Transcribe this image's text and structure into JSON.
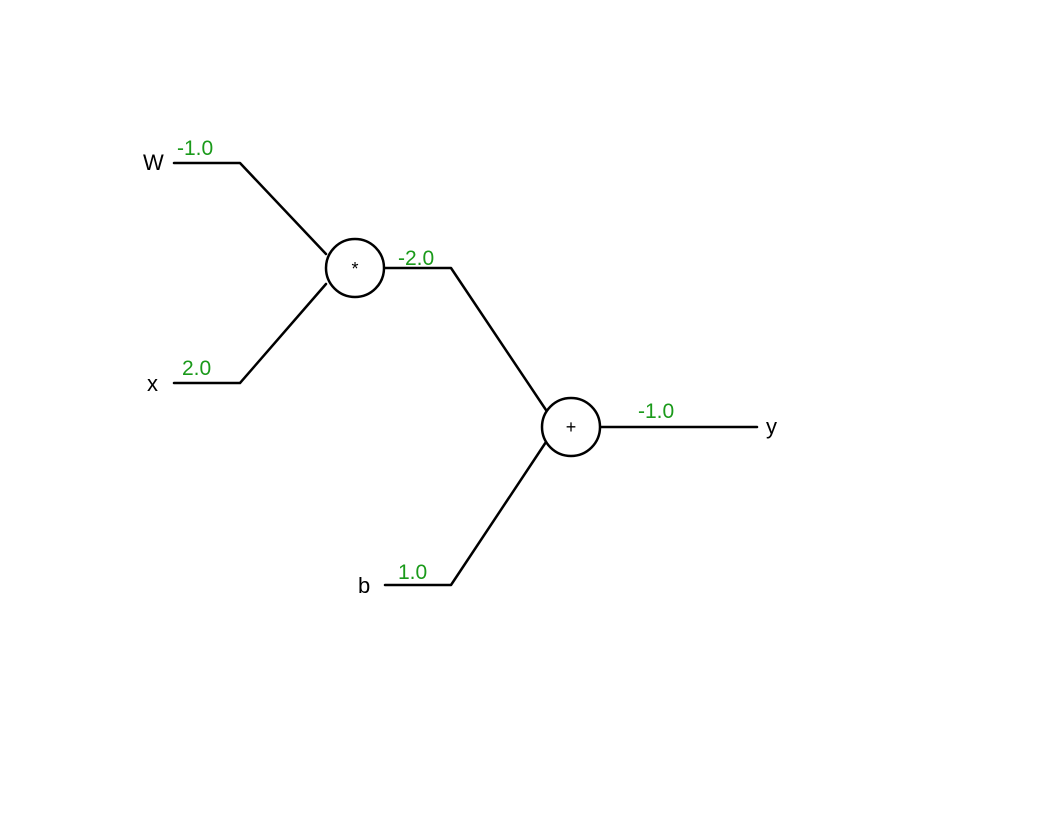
{
  "colors": {
    "wire": "#000000",
    "value": "#1a9a1a"
  },
  "inputs": {
    "w": {
      "label": "W",
      "value": "-1.0"
    },
    "x": {
      "label": "x",
      "value": "2.0"
    },
    "b": {
      "label": "b",
      "value": "1.0"
    }
  },
  "nodes": {
    "multiply": {
      "symbol": "*",
      "output_value": "-2.0"
    },
    "add": {
      "symbol": "+",
      "output_value": "-1.0"
    }
  },
  "output": {
    "label": "y"
  }
}
